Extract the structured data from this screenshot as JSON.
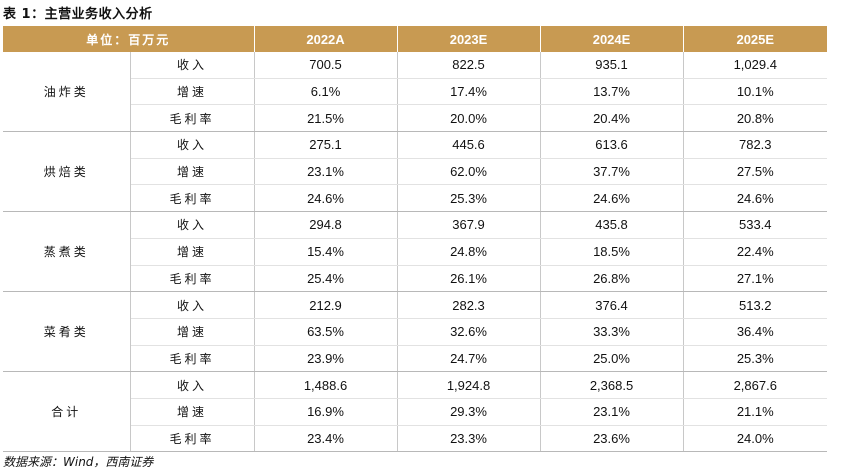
{
  "title": "表 1：主营业务收入分析",
  "header": {
    "unit_label": "单位：百万元",
    "years": [
      "2022A",
      "2023E",
      "2024E",
      "2025E"
    ]
  },
  "groups": [
    {
      "name": "油炸类",
      "rows": [
        {
          "metric": "收入",
          "values": [
            "700.5",
            "822.5",
            "935.1",
            "1,029.4"
          ]
        },
        {
          "metric": "增速",
          "values": [
            "6.1%",
            "17.4%",
            "13.7%",
            "10.1%"
          ]
        },
        {
          "metric": "毛利率",
          "values": [
            "21.5%",
            "20.0%",
            "20.4%",
            "20.8%"
          ]
        }
      ]
    },
    {
      "name": "烘焙类",
      "rows": [
        {
          "metric": "收入",
          "values": [
            "275.1",
            "445.6",
            "613.6",
            "782.3"
          ]
        },
        {
          "metric": "增速",
          "values": [
            "23.1%",
            "62.0%",
            "37.7%",
            "27.5%"
          ]
        },
        {
          "metric": "毛利率",
          "values": [
            "24.6%",
            "25.3%",
            "24.6%",
            "24.6%"
          ]
        }
      ]
    },
    {
      "name": "蒸煮类",
      "rows": [
        {
          "metric": "收入",
          "values": [
            "294.8",
            "367.9",
            "435.8",
            "533.4"
          ]
        },
        {
          "metric": "增速",
          "values": [
            "15.4%",
            "24.8%",
            "18.5%",
            "22.4%"
          ]
        },
        {
          "metric": "毛利率",
          "values": [
            "25.4%",
            "26.1%",
            "26.8%",
            "27.1%"
          ]
        }
      ]
    },
    {
      "name": "菜肴类",
      "rows": [
        {
          "metric": "收入",
          "values": [
            "212.9",
            "282.3",
            "376.4",
            "513.2"
          ]
        },
        {
          "metric": "增速",
          "values": [
            "63.5%",
            "32.6%",
            "33.3%",
            "36.4%"
          ]
        },
        {
          "metric": "毛利率",
          "values": [
            "23.9%",
            "24.7%",
            "25.0%",
            "25.3%"
          ]
        }
      ]
    },
    {
      "name": "合计",
      "rows": [
        {
          "metric": "收入",
          "values": [
            "1,488.6",
            "1,924.8",
            "2,368.5",
            "2,867.6"
          ]
        },
        {
          "metric": "增速",
          "values": [
            "16.9%",
            "29.3%",
            "23.1%",
            "21.1%"
          ]
        },
        {
          "metric": "毛利率",
          "values": [
            "23.4%",
            "23.3%",
            "23.6%",
            "24.0%"
          ]
        }
      ]
    }
  ],
  "source": "数据来源：Wind，西南证券",
  "colors": {
    "header_bg": "#c89a52",
    "header_text": "#ffffff"
  }
}
